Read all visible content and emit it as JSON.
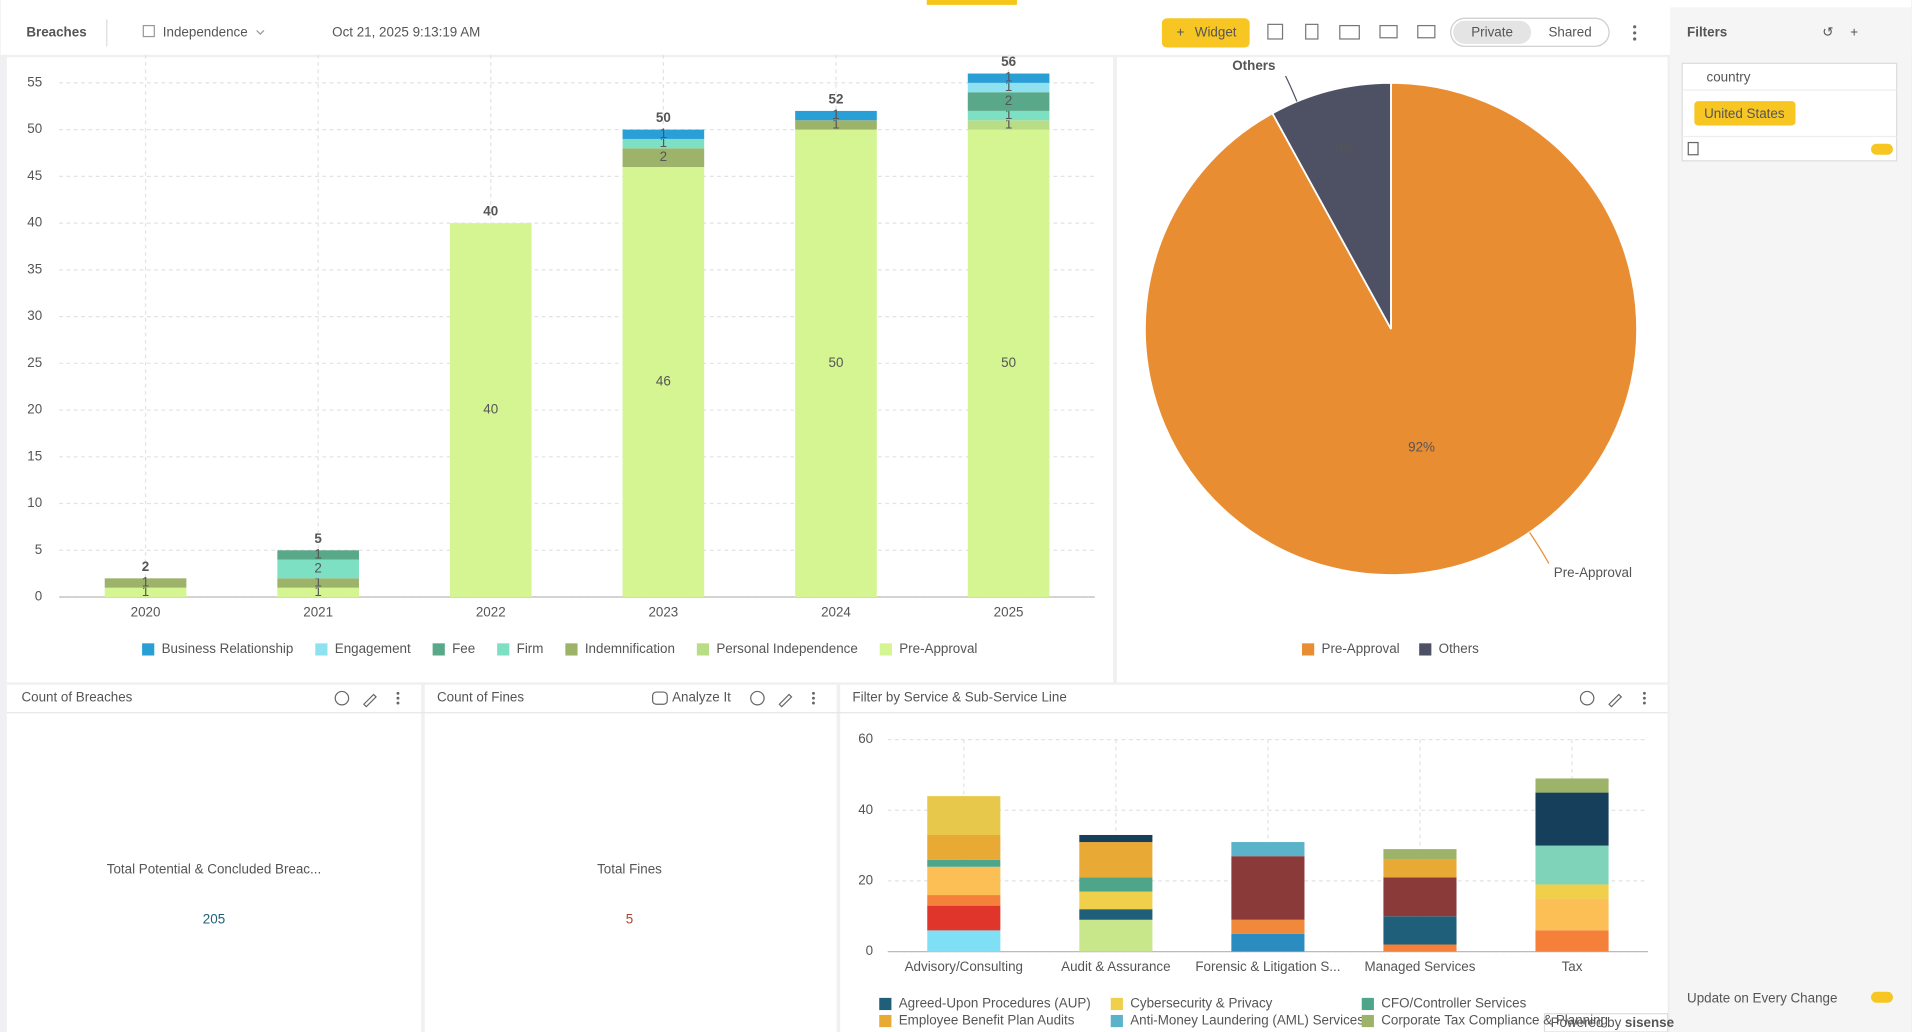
{
  "header": {
    "title": "Breaches",
    "datasource": "Independence",
    "timestamp": "Oct 21, 2025 9:13:19 AM",
    "widget_button": "Widget",
    "toggle": [
      "Private",
      "Shared"
    ]
  },
  "filters": {
    "title": "Filters",
    "field": "country",
    "value": "United States",
    "update_label": "Update on Every Change",
    "powered_by": "Powered by",
    "brand": "sisense"
  },
  "kpis": [
    {
      "panel_title": "Count of Breaches",
      "label": "Total Potential & Concluded Breac...",
      "value": 205,
      "color": "#1f5f7a"
    },
    {
      "panel_title": "Count of Fines",
      "action": "Analyze It",
      "label": "Total Fines",
      "value": 5,
      "color": "#b5432a"
    }
  ],
  "chart_data": [
    {
      "type": "stacked-bar",
      "categories": [
        "2020",
        "2021",
        "2022",
        "2023",
        "2024",
        "2025"
      ],
      "series": [
        {
          "name": "Pre-Approval",
          "color": "#d4f591",
          "values": [
            1,
            1,
            40,
            46,
            50,
            50
          ]
        },
        {
          "name": "Personal Independence",
          "color": "#b9dc86",
          "values": [
            0,
            0,
            0,
            0,
            0,
            1
          ]
        },
        {
          "name": "Indemnification",
          "color": "#9db36a",
          "values": [
            1,
            1,
            0,
            2,
            1,
            0
          ]
        },
        {
          "name": "Firm",
          "color": "#7ee0c3",
          "values": [
            0,
            2,
            0,
            1,
            0,
            1
          ]
        },
        {
          "name": "Fee",
          "color": "#5aa88a",
          "values": [
            0,
            1,
            0,
            0,
            0,
            2
          ]
        },
        {
          "name": "Engagement",
          "color": "#8ee2f0",
          "values": [
            0,
            0,
            0,
            0,
            0,
            1
          ]
        },
        {
          "name": "Business Relationship",
          "color": "#2a9fd6",
          "values": [
            0,
            0,
            0,
            1,
            1,
            1
          ]
        }
      ],
      "legend_order": [
        6,
        5,
        4,
        3,
        2,
        1,
        0
      ],
      "totals": [
        2,
        5,
        40,
        50,
        52,
        56
      ],
      "ylim": [
        0,
        58
      ],
      "yticks": [
        0,
        5,
        10,
        15,
        20,
        25,
        30,
        35,
        40,
        45,
        50,
        55
      ],
      "grid": true
    },
    {
      "type": "pie",
      "categories": [
        "Pre-Approval",
        "Others"
      ],
      "values": [
        92,
        8
      ],
      "value_labels": [
        "92%",
        "8%"
      ],
      "colors": [
        "#e98d33",
        "#4e5163"
      ]
    },
    {
      "type": "stacked-bar",
      "title": "Filter by Service & Sub-Service Line",
      "categories": [
        "Advisory/Consulting",
        "Audit & Assurance",
        "Forensic & Litigation S...",
        "Managed Services",
        "Tax"
      ],
      "series": [
        {
          "color": "#7fe0f5",
          "values": [
            6,
            0,
            0,
            0,
            0
          ]
        },
        {
          "color": "#e0352b",
          "values": [
            7,
            0,
            0,
            0,
            0
          ]
        },
        {
          "color": "#f5803a",
          "values": [
            3,
            0,
            0,
            2,
            6
          ]
        },
        {
          "color": "#fbbf55",
          "values": [
            8,
            0,
            0,
            0,
            9
          ]
        },
        {
          "color": "#c8e68a",
          "values": [
            0,
            9,
            0,
            0,
            0
          ]
        },
        {
          "name": "Agreed-Upon Procedures (AUP)",
          "color": "#1f5f7a",
          "values": [
            0,
            3,
            0,
            8,
            0
          ]
        },
        {
          "name": "Cybersecurity & Privacy",
          "color": "#f0cf4a",
          "values": [
            0,
            5,
            0,
            0,
            4
          ]
        },
        {
          "color": "#2b8cbf",
          "values": [
            0,
            0,
            5,
            0,
            0
          ]
        },
        {
          "color": "#f08a3a",
          "values": [
            0,
            0,
            4,
            0,
            0
          ]
        },
        {
          "name": "CFO/Controller Services",
          "color": "#4fa58a",
          "values": [
            2,
            4,
            0,
            0,
            0
          ]
        },
        {
          "color": "#8b3a3a",
          "values": [
            0,
            0,
            18,
            11,
            0
          ]
        },
        {
          "color": "#7fd3b8",
          "values": [
            0,
            0,
            0,
            0,
            11
          ]
        },
        {
          "name": "Employee Benefit Plan Audits",
          "color": "#e8a935",
          "values": [
            7,
            10,
            0,
            5,
            0
          ]
        },
        {
          "color": "#163f5c",
          "values": [
            0,
            2,
            0,
            0,
            15
          ]
        },
        {
          "name": "Anti-Money Laundering (AML) Services",
          "color": "#5bb3c9",
          "values": [
            0,
            0,
            4,
            0,
            0
          ]
        },
        {
          "color": "#e8c84a",
          "values": [
            11,
            0,
            0,
            0,
            0
          ]
        },
        {
          "name": "Corporate Tax Compliance & Planning",
          "color": "#9db36a",
          "values": [
            0,
            0,
            0,
            3,
            4
          ]
        }
      ],
      "ylim": [
        0,
        60
      ],
      "yticks": [
        0,
        20,
        40,
        60
      ],
      "grid": true
    }
  ]
}
